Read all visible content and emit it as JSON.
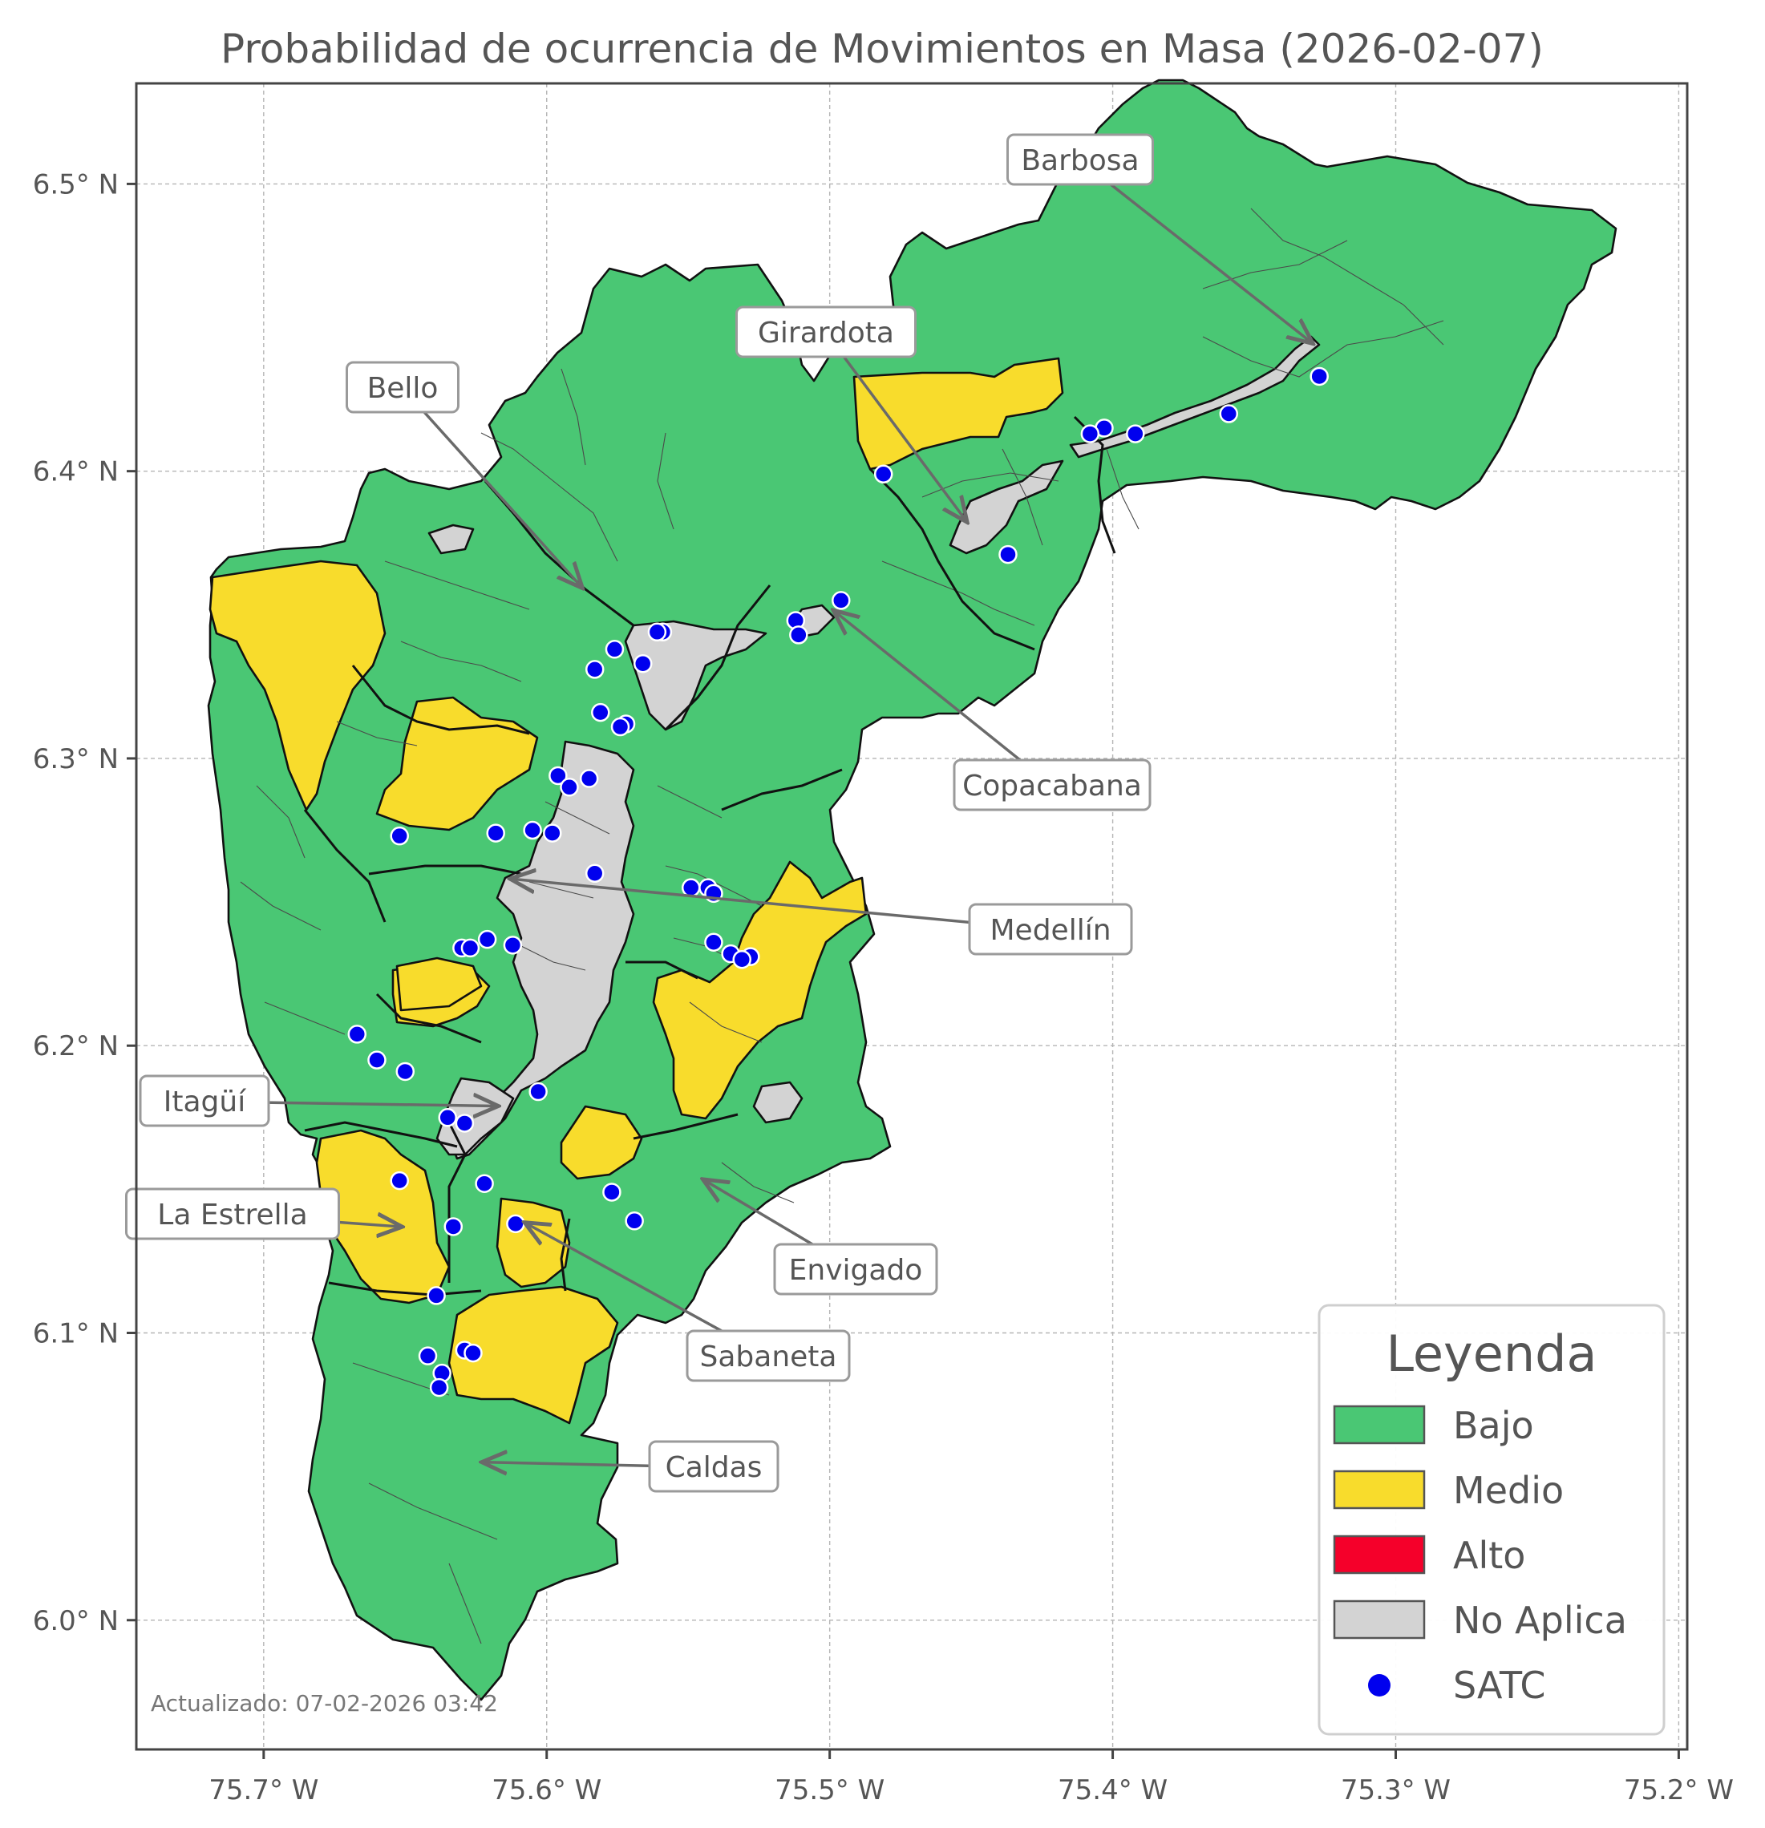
{
  "title": "Probabilidad de ocurrencia de Movimientos en Masa (2026-02-07)",
  "axes": {
    "x_ticks": [
      "75.7° W",
      "75.6° W",
      "75.5° W",
      "75.4° W",
      "75.3° W",
      "75.2° W"
    ],
    "y_ticks": [
      "6.5° N",
      "6.4° N",
      "6.3° N",
      "6.2° N",
      "6.1° N",
      "6.0° N"
    ],
    "x_values": [
      -75.7,
      -75.6,
      -75.5,
      -75.4,
      -75.3,
      -75.2
    ],
    "y_values": [
      6.5,
      6.4,
      6.3,
      6.2,
      6.1,
      6.0
    ],
    "xlim": [
      -75.745,
      -75.197
    ],
    "ylim": [
      5.955,
      6.535
    ],
    "grid": true
  },
  "municipalities": [
    {
      "name": "Barbosa",
      "category": "Bajo"
    },
    {
      "name": "Girardota",
      "category": "Bajo"
    },
    {
      "name": "Bello",
      "category": "Bajo"
    },
    {
      "name": "Copacabana",
      "category": "Bajo"
    },
    {
      "name": "Medellín",
      "category": "Bajo"
    },
    {
      "name": "Itagüí",
      "category": "Bajo"
    },
    {
      "name": "La Estrella",
      "category": "Bajo"
    },
    {
      "name": "Envigado",
      "category": "Bajo"
    },
    {
      "name": "Sabaneta",
      "category": "Bajo"
    },
    {
      "name": "Caldas",
      "category": "Bajo"
    }
  ],
  "legend": {
    "title": "Leyenda",
    "placement": "bottom-right",
    "items": [
      {
        "label": "Bajo",
        "color": "#4ac774",
        "shape": "patch"
      },
      {
        "label": "Medio",
        "color": "#f8dc2c",
        "shape": "patch"
      },
      {
        "label": "Alto",
        "color": "#f5002a",
        "shape": "patch"
      },
      {
        "label": "No Aplica",
        "color": "#d3d3d3",
        "shape": "patch"
      },
      {
        "label": "SATC",
        "color": "#0000ee",
        "shape": "dot"
      }
    ]
  },
  "colors": {
    "Bajo": "#4ac774",
    "Medio": "#f8dc2c",
    "Alto": "#f5002a",
    "NoAplica": "#d3d3d3",
    "SATC": "#0000ee"
  },
  "satc_stations": [
    [
      -75.327,
      6.433
    ],
    [
      -75.359,
      6.42
    ],
    [
      -75.392,
      6.413
    ],
    [
      -75.403,
      6.415
    ],
    [
      -75.408,
      6.413
    ],
    [
      -75.481,
      6.399
    ],
    [
      -75.437,
      6.371
    ],
    [
      -75.496,
      6.355
    ],
    [
      -75.512,
      6.348
    ],
    [
      -75.511,
      6.343
    ],
    [
      -75.559,
      6.344
    ],
    [
      -75.561,
      6.344
    ],
    [
      -75.566,
      6.333
    ],
    [
      -75.576,
      6.338
    ],
    [
      -75.583,
      6.331
    ],
    [
      -75.581,
      6.316
    ],
    [
      -75.572,
      6.312
    ],
    [
      -75.574,
      6.311
    ],
    [
      -75.596,
      6.294
    ],
    [
      -75.585,
      6.293
    ],
    [
      -75.592,
      6.29
    ],
    [
      -75.652,
      6.273
    ],
    [
      -75.618,
      6.274
    ],
    [
      -75.605,
      6.275
    ],
    [
      -75.598,
      6.274
    ],
    [
      -75.583,
      6.26
    ],
    [
      -75.549,
      6.255
    ],
    [
      -75.543,
      6.255
    ],
    [
      -75.541,
      6.253
    ],
    [
      -75.541,
      6.236
    ],
    [
      -75.535,
      6.232
    ],
    [
      -75.528,
      6.231
    ],
    [
      -75.531,
      6.23
    ],
    [
      -75.621,
      6.237
    ],
    [
      -75.612,
      6.235
    ],
    [
      -75.63,
      6.234
    ],
    [
      -75.627,
      6.234
    ],
    [
      -75.667,
      6.204
    ],
    [
      -75.66,
      6.195
    ],
    [
      -75.65,
      6.191
    ],
    [
      -75.603,
      6.184
    ],
    [
      -75.635,
      6.175
    ],
    [
      -75.629,
      6.173
    ],
    [
      -75.652,
      6.153
    ],
    [
      -75.622,
      6.152
    ],
    [
      -75.577,
      6.149
    ],
    [
      -75.569,
      6.139
    ],
    [
      -75.611,
      6.138
    ],
    [
      -75.633,
      6.137
    ],
    [
      -75.639,
      6.113
    ],
    [
      -75.642,
      6.092
    ],
    [
      -75.629,
      6.094
    ],
    [
      -75.626,
      6.093
    ],
    [
      -75.637,
      6.086
    ],
    [
      -75.638,
      6.081
    ]
  ],
  "callouts": [
    {
      "label": "Barbosa",
      "target": [
        -75.33,
        6.445
      ]
    },
    {
      "label": "Girardota",
      "target": [
        -75.452,
        6.383
      ]
    },
    {
      "label": "Bello",
      "target": [
        -75.588,
        6.36
      ]
    },
    {
      "label": "Copacabana",
      "target": [
        -75.498,
        6.351
      ]
    },
    {
      "label": "Medellín",
      "target": [
        -75.612,
        6.258
      ]
    },
    {
      "label": "Itagüí",
      "target": [
        -75.618,
        6.179
      ]
    },
    {
      "label": "La Estrella",
      "target": [
        -75.652,
        6.137
      ]
    },
    {
      "label": "Envigado",
      "target": [
        -75.544,
        6.153
      ]
    },
    {
      "label": "Sabaneta",
      "target": [
        -75.607,
        6.138
      ]
    },
    {
      "label": "Caldas",
      "target": [
        -75.622,
        6.055
      ]
    }
  ],
  "updated_text": "Actualizado: 07-02-2026 03:42"
}
